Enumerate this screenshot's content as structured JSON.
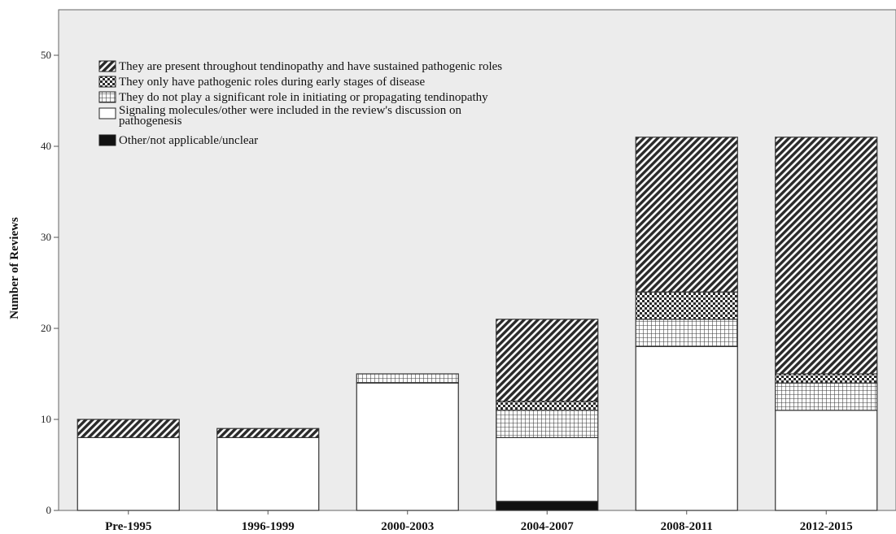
{
  "chart_data": {
    "type": "bar",
    "stacked": true,
    "title": "",
    "xlabel": "",
    "ylabel": "Number of Reviews",
    "ylim": [
      0,
      55
    ],
    "yticks": [
      0,
      10,
      20,
      30,
      40,
      50
    ],
    "grid": false,
    "legend_position": "top-left",
    "categories": [
      "Pre-1995",
      "1996-1999",
      "2000-2003",
      "2004-2007",
      "2008-2011",
      "2012-2015"
    ],
    "series": [
      {
        "name": "Other/not applicable/unclear",
        "pattern": "solid-black",
        "values": [
          0,
          0,
          0,
          1,
          0,
          0
        ]
      },
      {
        "name": "Signaling molecules/other were included in the review's discussion on pathogenesis",
        "pattern": "white",
        "values": [
          8,
          8,
          14,
          7,
          18,
          11
        ]
      },
      {
        "name": "They do not play a significant role in initiating or propagating tendinopathy",
        "pattern": "grid",
        "values": [
          0,
          0,
          1,
          3,
          3,
          3
        ]
      },
      {
        "name": "They only have pathogenic roles during early stages of disease",
        "pattern": "checker",
        "values": [
          0,
          0,
          0,
          1,
          3,
          1
        ]
      },
      {
        "name": "They are present throughout tendinopathy and have sustained pathogenic roles",
        "pattern": "diagonal",
        "values": [
          2,
          1,
          0,
          9,
          17,
          26
        ]
      }
    ],
    "legend": [
      {
        "label": "They are present throughout tendinopathy and have sustained pathogenic roles",
        "pattern": "diagonal"
      },
      {
        "label": "They only have pathogenic roles during early stages of disease",
        "pattern": "checker"
      },
      {
        "label": "They do not play a significant role in initiating or propagating tendinopathy",
        "pattern": "grid"
      },
      {
        "label_lines": [
          "Signaling molecules/other were included in the review's discussion on",
          "pathogenesis"
        ],
        "pattern": "white"
      },
      {
        "label": "Other/not applicable/unclear",
        "pattern": "solid-black"
      }
    ],
    "colors": {
      "plot_background": "#ececec",
      "bar_stroke": "#333333",
      "hatch": "#2a2a2a",
      "solid": "#111111",
      "axis": "#555555"
    }
  }
}
